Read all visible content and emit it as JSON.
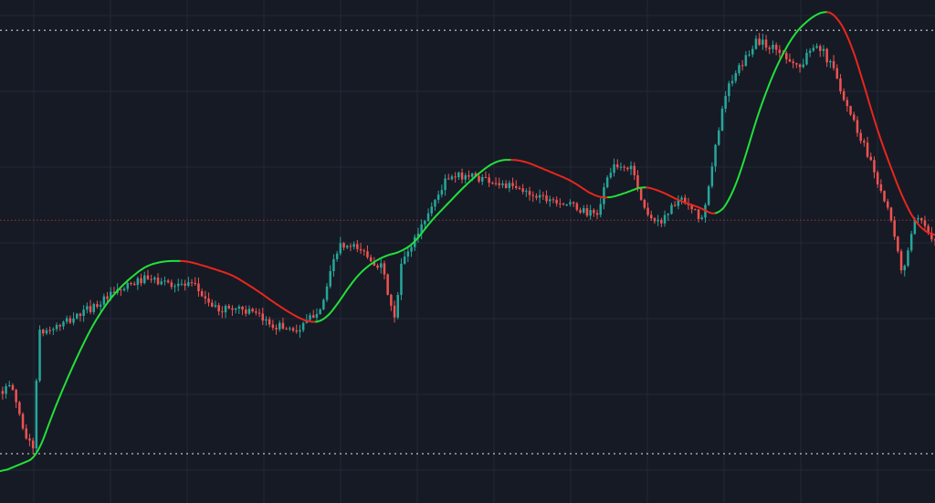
{
  "colors": {
    "background": "#161a25",
    "grid": "#232838",
    "candle_up": "#26a69a",
    "candle_down": "#ef5350",
    "trend_up": "#22e03a",
    "trend_down": "#e8261c",
    "level_line": "#b8bcc8",
    "mid_line": "#a33a3a"
  },
  "chart_data": {
    "type": "candlestick",
    "grid": true,
    "ylim": [
      -10,
      520
    ],
    "x_range": [
      0,
      1024
    ],
    "levels": [
      {
        "name": "upper",
        "value": 488,
        "style": "dotted"
      },
      {
        "name": "mid",
        "value": 288,
        "style": "dotted"
      },
      {
        "name": "lower",
        "value": 42,
        "style": "dotted"
      }
    ],
    "price_path": [
      [
        0,
        108
      ],
      [
        15,
        112
      ],
      [
        30,
        60
      ],
      [
        38,
        48
      ],
      [
        44,
        168
      ],
      [
        70,
        178
      ],
      [
        100,
        195
      ],
      [
        130,
        212
      ],
      [
        158,
        226
      ],
      [
        185,
        222
      ],
      [
        215,
        218
      ],
      [
        238,
        194
      ],
      [
        265,
        196
      ],
      [
        300,
        178
      ],
      [
        330,
        172
      ],
      [
        355,
        200
      ],
      [
        372,
        260
      ],
      [
        395,
        258
      ],
      [
        420,
        238
      ],
      [
        435,
        178
      ],
      [
        440,
        238
      ],
      [
        462,
        280
      ],
      [
        490,
        330
      ],
      [
        512,
        336
      ],
      [
        540,
        330
      ],
      [
        575,
        318
      ],
      [
        610,
        310
      ],
      [
        655,
        292
      ],
      [
        670,
        342
      ],
      [
        695,
        344
      ],
      [
        705,
        304
      ],
      [
        722,
        284
      ],
      [
        745,
        310
      ],
      [
        772,
        288
      ],
      [
        795,
        420
      ],
      [
        830,
        478
      ],
      [
        860,
        464
      ],
      [
        878,
        448
      ],
      [
        895,
        478
      ],
      [
        915,
        446
      ],
      [
        935,
        396
      ],
      [
        955,
        352
      ],
      [
        975,
        296
      ],
      [
        990,
        232
      ],
      [
        1005,
        290
      ],
      [
        1024,
        270
      ]
    ],
    "trend_line": [
      [
        0,
        22
      ],
      [
        20,
        30
      ],
      [
        40,
        38
      ],
      [
        60,
        90
      ],
      [
        80,
        135
      ],
      [
        100,
        175
      ],
      [
        120,
        205
      ],
      [
        140,
        225
      ],
      [
        160,
        240
      ],
      [
        180,
        245
      ],
      [
        205,
        245
      ],
      [
        230,
        238
      ],
      [
        255,
        230
      ],
      [
        280,
        215
      ],
      [
        305,
        198
      ],
      [
        325,
        186
      ],
      [
        340,
        180
      ],
      [
        355,
        182
      ],
      [
        370,
        200
      ],
      [
        385,
        222
      ],
      [
        400,
        238
      ],
      [
        420,
        250
      ],
      [
        440,
        255
      ],
      [
        455,
        265
      ],
      [
        470,
        285
      ],
      [
        490,
        305
      ],
      [
        510,
        325
      ],
      [
        530,
        342
      ],
      [
        545,
        351
      ],
      [
        560,
        352
      ],
      [
        575,
        350
      ],
      [
        600,
        340
      ],
      [
        625,
        330
      ],
      [
        650,
        314
      ],
      [
        665,
        311
      ],
      [
        680,
        315
      ],
      [
        705,
        324
      ],
      [
        725,
        318
      ],
      [
        745,
        308
      ],
      [
        765,
        302
      ],
      [
        785,
        292
      ],
      [
        800,
        310
      ],
      [
        815,
        350
      ],
      [
        830,
        400
      ],
      [
        850,
        450
      ],
      [
        870,
        485
      ],
      [
        890,
        503
      ],
      [
        905,
        509
      ],
      [
        915,
        505
      ],
      [
        930,
        480
      ],
      [
        945,
        435
      ],
      [
        960,
        385
      ],
      [
        975,
        345
      ],
      [
        990,
        308
      ],
      [
        1005,
        282
      ],
      [
        1024,
        270
      ]
    ]
  }
}
